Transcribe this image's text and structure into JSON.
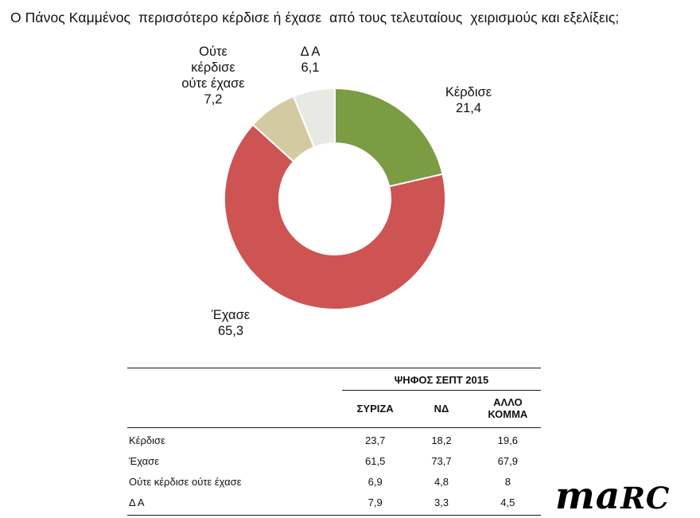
{
  "chart_data": {
    "type": "pie",
    "donut": true,
    "title": "Ο Πάνος Καμμένος  περισσότερο κέρδισε ή έχασε  από τους τελευταίους  χειρισμούς και εξελίξεις;",
    "categories": [
      "Κέρδισε",
      "Έχασε",
      "Ούτε κέρδισε ούτε έχασε",
      "Δ Α"
    ],
    "values": [
      21.4,
      65.3,
      7.2,
      6.1
    ],
    "value_labels": [
      "21,4",
      "65,3",
      "7,2",
      "6,1"
    ],
    "colors": [
      "#7b9c43",
      "#cd5452",
      "#d3caa1",
      "#e8e8e5"
    ],
    "start_angle_deg": 0,
    "direction": "clockwise",
    "legend_position": "none"
  },
  "labels": {
    "kerdise": "Κέρδισε\n21,4",
    "exase": "Έχασε\n65,3",
    "oute": "Ούτε\nκέρδισε\nούτε έχασε\n7,2",
    "da": "Δ Α\n6,1"
  },
  "table": {
    "group_header": "ΨΗΦΟΣ ΣΕΠΤ 2015",
    "columns": [
      "ΣΥΡΙΖΑ",
      "ΝΔ",
      "ΑΛΛΟ ΚΟΜΜΑ"
    ],
    "rows": [
      {
        "label": "Κέρδισε",
        "values": [
          "23,7",
          "18,2",
          "19,6"
        ]
      },
      {
        "label": "Έχασε",
        "values": [
          "61,5",
          "73,7",
          "67,9"
        ]
      },
      {
        "label": "Ούτε κέρδισε ούτε έχασε",
        "values": [
          "6,9",
          "4,8",
          "8"
        ]
      },
      {
        "label": "Δ Α",
        "values": [
          "7,9",
          "3,3",
          "4,5"
        ]
      }
    ]
  },
  "logo": {
    "part1": "ma",
    "part2": "RC"
  }
}
